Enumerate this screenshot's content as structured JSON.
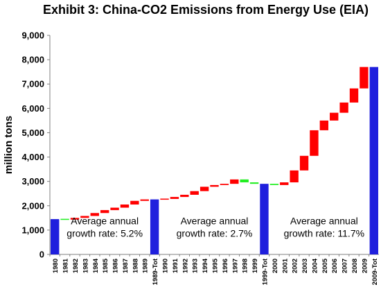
{
  "chart_data": {
    "type": "bar",
    "subtype": "waterfall",
    "title": "Exhibit 3: China-CO2 Emissions from Energy Use (EIA)",
    "ylabel": "million tons",
    "xlabel": "",
    "ylim": [
      0,
      9000
    ],
    "yticks": [
      "0",
      "1,000",
      "2,000",
      "3,000",
      "4,000",
      "5,000",
      "6,000",
      "7,000",
      "8,000",
      "9,000"
    ],
    "grid": false,
    "legend": "none",
    "colors": {
      "total": "#1f1fdd",
      "increase": "#ff0000",
      "decrease": "#22ee22"
    },
    "categories": [
      "1980",
      "1981",
      "1982",
      "1983",
      "1984",
      "1985",
      "1986",
      "1987",
      "1988",
      "1989",
      "1989-Tot",
      "1990",
      "1991",
      "1992",
      "1993",
      "1994",
      "1995",
      "1996",
      "1997",
      "1998",
      "1999",
      "1999-Tot",
      "2000",
      "2001",
      "2002",
      "2003",
      "2004",
      "2005",
      "2006",
      "2007",
      "2008",
      "2009",
      "2009-Tot"
    ],
    "values": [
      1450,
      1430,
      1500,
      1580,
      1700,
      1820,
      1920,
      2050,
      2200,
      2260,
      2260,
      2280,
      2360,
      2450,
      2600,
      2780,
      2850,
      2900,
      3080,
      2960,
      2900,
      2900,
      2850,
      2960,
      3450,
      4050,
      5100,
      5500,
      5820,
      6240,
      6820,
      7700,
      7700
    ],
    "bar_kind": [
      "total",
      "decrease",
      "increase",
      "increase",
      "increase",
      "increase",
      "increase",
      "increase",
      "increase",
      "increase",
      "total",
      "increase",
      "increase",
      "increase",
      "increase",
      "increase",
      "increase",
      "increase",
      "increase",
      "decrease",
      "decrease",
      "total",
      "decrease",
      "increase",
      "increase",
      "increase",
      "increase",
      "increase",
      "increase",
      "increase",
      "increase",
      "increase",
      "total"
    ],
    "annotations": [
      {
        "line1": "Average annual",
        "line2": "growth rate: 5.2%",
        "x_category": "1985",
        "y_value": 950
      },
      {
        "line1": "Average annual",
        "line2": "growth rate: 2.7%",
        "x_category": "1995",
        "y_value": 950
      },
      {
        "line1": "Average annual",
        "line2": "growth rate: 11.7%",
        "x_category": "2005",
        "y_value": 950
      }
    ]
  }
}
